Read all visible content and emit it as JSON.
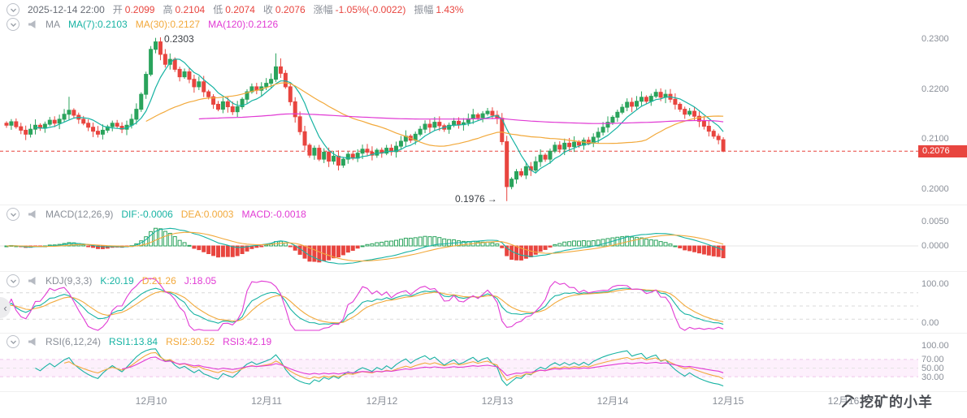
{
  "top_bar": {
    "datetime": "2025-12-14 22:00",
    "open_label": "开",
    "open": "0.2099",
    "high_label": "高",
    "high": "0.2104",
    "low_label": "低",
    "low": "0.2074",
    "close_label": "收",
    "close": "0.2076",
    "change_label": "涨幅",
    "change": "-1.05%(-0.0022)",
    "amplitude_label": "振幅",
    "amplitude": "1.43%"
  },
  "ma_bar": {
    "title": "MA",
    "ma7": "MA(7):0.2103",
    "ma30": "MA(30):0.2127",
    "ma120": "MA(120):0.2126"
  },
  "macd_panel": {
    "title": "MACD(12,26,9)",
    "dif": "DIF:-0.0006",
    "dea": "DEA:0.0003",
    "macd": "MACD:-0.0018",
    "axis": [
      "0.0050",
      "0.0000"
    ]
  },
  "kdj_panel": {
    "title": "KDJ(9,3,3)",
    "k": "K:20.19",
    "d": "D:21.26",
    "j": "J:18.05",
    "axis": [
      "100.00",
      "0.00"
    ]
  },
  "rsi_panel": {
    "title": "RSI(6,12,24)",
    "rsi1": "RSI1:13.84",
    "rsi2": "RSI2:30.52",
    "rsi3": "RSI3:42.19",
    "axis": [
      "100.00",
      "70.00",
      "50.00",
      "30.00"
    ]
  },
  "price_axis": [
    "0.2300",
    "0.2200",
    "0.2100",
    "0.2000"
  ],
  "last_price_tag": "0.2076",
  "annotations": {
    "high": "0.2303",
    "low": "0.1976",
    "low_arrow": "→"
  },
  "x_axis": [
    "12月10",
    "12月11",
    "12月12",
    "12月13",
    "12月14",
    "12月15",
    "12月16"
  ],
  "watermark": "挖矿的小羊",
  "colors": {
    "up": "#2aa35c",
    "down": "#e8453f",
    "teal": "#17b3a3",
    "orange": "#f2a93b",
    "magenta": "#e13ad4",
    "grid": "#d9d9d9",
    "band": "rgba(225,58,212,0.08)"
  },
  "chart_data": {
    "type": "candlestick",
    "interval": "1h",
    "current_price": 0.2076,
    "last_candle": {
      "open": 0.2099,
      "high": 0.2104,
      "low": 0.2074,
      "close": 0.2076
    },
    "change_pct": -1.05,
    "change_abs": -0.0022,
    "amplitude_pct": 1.43,
    "high_extreme": 0.2303,
    "low_extreme": 0.1976,
    "ma_periods": [
      7,
      30,
      120
    ],
    "ma_values": {
      "ma7": 0.2103,
      "ma30": 0.2127,
      "ma120": 0.2126
    },
    "macd": {
      "params": [
        12,
        26,
        9
      ],
      "dif": -0.0006,
      "dea": 0.0003,
      "macd": -0.0018
    },
    "kdj": {
      "params": [
        9,
        3,
        3
      ],
      "k": 20.19,
      "d": 21.26,
      "j": 18.05
    },
    "rsi": {
      "params": [
        6,
        12,
        24
      ],
      "rsi1": 13.84,
      "rsi2": 30.52,
      "rsi3": 42.19
    },
    "y_axis": [
      0.23,
      0.22,
      0.21,
      0.2
    ],
    "macd_axis": [
      0.005,
      0.0
    ],
    "oscillator_axis": [
      100,
      0
    ],
    "rsi_axis": [
      100,
      70,
      50,
      30
    ],
    "x_ticks": [
      "12月10",
      "12月11",
      "12月12",
      "12月13",
      "12月14",
      "12月15",
      "12月16"
    ],
    "first_open": 0.2132,
    "prehistory_close": 0.2128,
    "close": [
      0.2128,
      0.2135,
      0.2125,
      0.2118,
      0.211,
      0.212,
      0.2128,
      0.2122,
      0.213,
      0.2138,
      0.2132,
      0.214,
      0.215,
      0.2158,
      0.2148,
      0.214,
      0.2132,
      0.2124,
      0.2116,
      0.211,
      0.2118,
      0.2125,
      0.2132,
      0.2126,
      0.212,
      0.2128,
      0.214,
      0.216,
      0.219,
      0.223,
      0.228,
      0.2295,
      0.227,
      0.225,
      0.226,
      0.224,
      0.2225,
      0.2235,
      0.222,
      0.2205,
      0.2215,
      0.2195,
      0.2185,
      0.217,
      0.216,
      0.2175,
      0.2165,
      0.2155,
      0.2165,
      0.218,
      0.2195,
      0.2205,
      0.2198,
      0.2205,
      0.2212,
      0.222,
      0.2245,
      0.2232,
      0.2205,
      0.2175,
      0.2145,
      0.2115,
      0.2088,
      0.2068,
      0.2082,
      0.206,
      0.2074,
      0.2056,
      0.2066,
      0.2048,
      0.206,
      0.207,
      0.2062,
      0.2072,
      0.208,
      0.2074,
      0.2068,
      0.2078,
      0.2072,
      0.2082,
      0.2075,
      0.2086,
      0.2096,
      0.2106,
      0.2098,
      0.211,
      0.212,
      0.213,
      0.2124,
      0.2134,
      0.2127,
      0.212,
      0.2128,
      0.2136,
      0.2129,
      0.2133,
      0.2141,
      0.2149,
      0.2143,
      0.2151,
      0.2156,
      0.2148,
      0.2142,
      0.2095,
      0.2005,
      0.202,
      0.2035,
      0.2028,
      0.2045,
      0.2038,
      0.2055,
      0.2068,
      0.206,
      0.2076,
      0.2088,
      0.208,
      0.2092,
      0.2085,
      0.2094,
      0.2088,
      0.2098,
      0.2092,
      0.2104,
      0.2114,
      0.2124,
      0.2134,
      0.2144,
      0.2154,
      0.2164,
      0.2174,
      0.2166,
      0.2176,
      0.2184,
      0.2176,
      0.2186,
      0.2194,
      0.2184,
      0.219,
      0.218,
      0.217,
      0.216,
      0.215,
      0.2156,
      0.2146,
      0.2136,
      0.2126,
      0.2116,
      0.2106,
      0.2099,
      0.2076
    ],
    "wick_overrides": {
      "13": {
        "high": 0.2185
      },
      "31": {
        "high": 0.2303
      },
      "56": {
        "high": 0.2272
      },
      "57": {
        "high": 0.2262
      },
      "104": {
        "low": 0.1976
      },
      "149": {
        "high": 0.2104,
        "low": 0.2074
      }
    }
  }
}
